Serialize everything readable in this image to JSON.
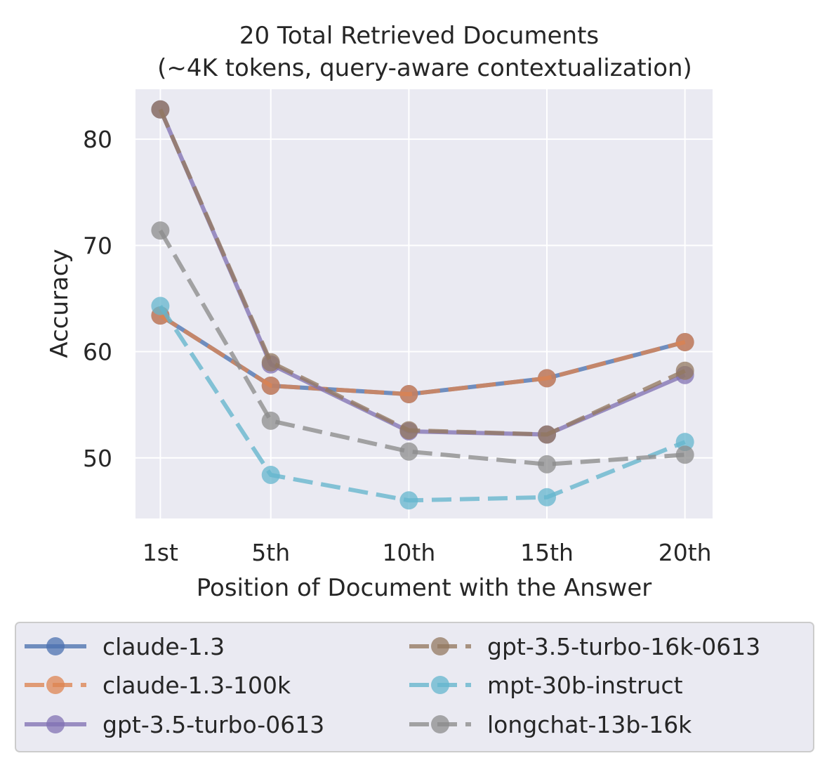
{
  "chart_data": {
    "type": "line",
    "title": "20 Total Retrieved Documents",
    "subtitle": "(~4K tokens, query-aware contextualization)",
    "xlabel": "Position of Document with the Answer",
    "ylabel": "Accuracy",
    "categories": [
      "1st",
      "5th",
      "10th",
      "15th",
      "20th"
    ],
    "x": [
      1,
      5,
      10,
      15,
      20
    ],
    "xlim": [
      0.1,
      21.0
    ],
    "ylim": [
      44.3,
      84.7
    ],
    "yticks": [
      50,
      60,
      70,
      80
    ],
    "grid": true,
    "legend_position": "bottom",
    "series": [
      {
        "name": "claude-1.3",
        "color": "#4c72b0",
        "dashed": false,
        "values": [
          63.4,
          56.8,
          56.0,
          57.5,
          60.9
        ]
      },
      {
        "name": "claude-1.3-100k",
        "color": "#dd8452",
        "dashed": true,
        "values": [
          63.4,
          56.8,
          56.0,
          57.5,
          60.9
        ]
      },
      {
        "name": "gpt-3.5-turbo-0613",
        "color": "#8172b3",
        "dashed": false,
        "values": [
          82.8,
          58.8,
          52.5,
          52.2,
          57.8
        ]
      },
      {
        "name": "gpt-3.5-turbo-16k-0613",
        "color": "#937860",
        "dashed": true,
        "values": [
          82.8,
          59.0,
          52.6,
          52.2,
          58.2
        ]
      },
      {
        "name": "mpt-30b-instruct",
        "color": "#64b5cd",
        "dashed": true,
        "values": [
          64.3,
          48.4,
          46.0,
          46.3,
          51.5
        ]
      },
      {
        "name": "longchat-13b-16k",
        "color": "#8c8c8c",
        "dashed": true,
        "values": [
          71.4,
          53.5,
          50.6,
          49.4,
          50.3
        ]
      }
    ]
  }
}
